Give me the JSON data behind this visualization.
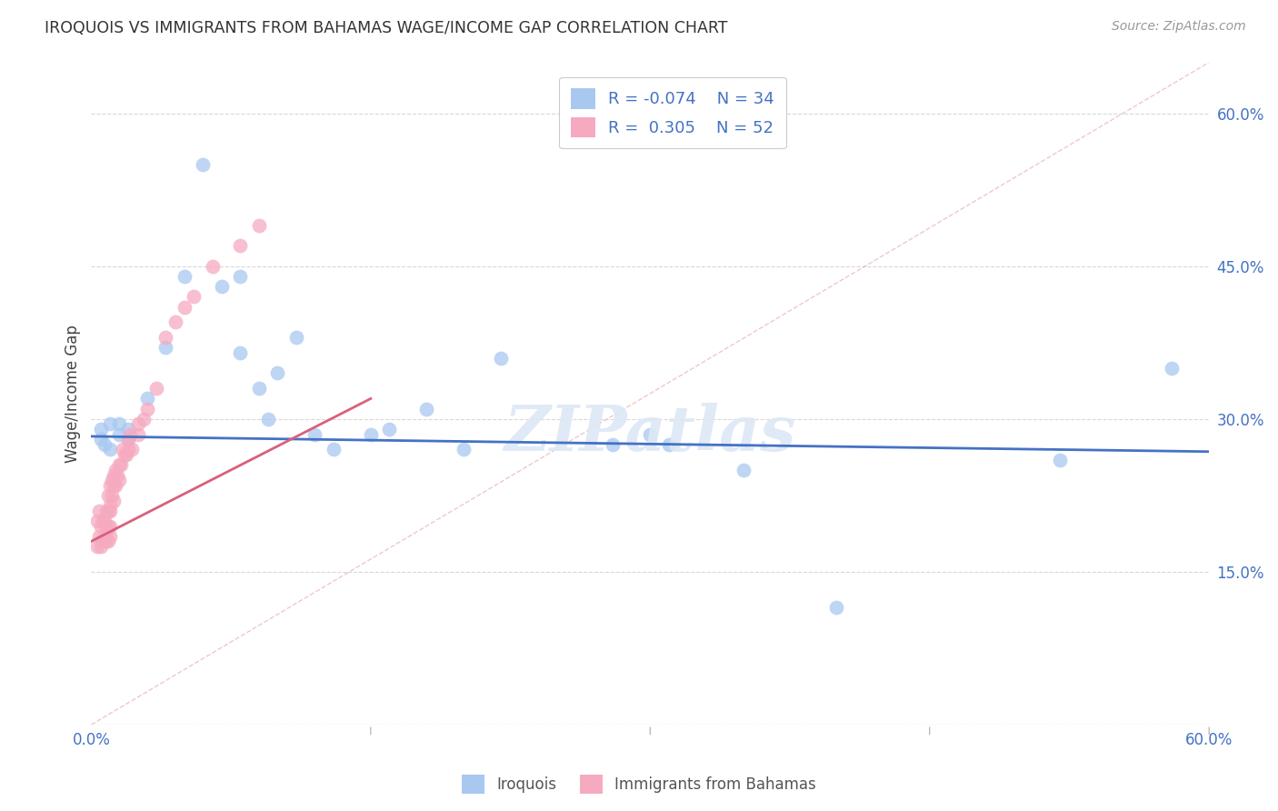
{
  "title": "IROQUOIS VS IMMIGRANTS FROM BAHAMAS WAGE/INCOME GAP CORRELATION CHART",
  "source": "Source: ZipAtlas.com",
  "ylabel": "Wage/Income Gap",
  "legend_label1": "Iroquois",
  "legend_label2": "Immigrants from Bahamas",
  "R1": -0.074,
  "N1": 34,
  "R2": 0.305,
  "N2": 52,
  "xlim": [
    0.0,
    0.6
  ],
  "ylim": [
    0.0,
    0.65
  ],
  "yticks": [
    0.0,
    0.15,
    0.3,
    0.45,
    0.6
  ],
  "ytick_labels": [
    "",
    "15.0%",
    "30.0%",
    "45.0%",
    "60.0%"
  ],
  "color_blue": "#a8c8f0",
  "color_pink": "#f5aac0",
  "line_blue": "#4472c4",
  "line_pink": "#d9607a",
  "iroquois_x": [
    0.005,
    0.005,
    0.007,
    0.01,
    0.01,
    0.015,
    0.015,
    0.02,
    0.02,
    0.03,
    0.04,
    0.05,
    0.06,
    0.07,
    0.08,
    0.08,
    0.09,
    0.095,
    0.1,
    0.11,
    0.12,
    0.13,
    0.15,
    0.16,
    0.18,
    0.2,
    0.22,
    0.28,
    0.3,
    0.31,
    0.35,
    0.4,
    0.52,
    0.58
  ],
  "iroquois_y": [
    0.29,
    0.28,
    0.275,
    0.295,
    0.27,
    0.295,
    0.285,
    0.28,
    0.29,
    0.32,
    0.37,
    0.44,
    0.55,
    0.43,
    0.44,
    0.365,
    0.33,
    0.3,
    0.345,
    0.38,
    0.285,
    0.27,
    0.285,
    0.29,
    0.31,
    0.27,
    0.36,
    0.275,
    0.285,
    0.275,
    0.25,
    0.115,
    0.26,
    0.35
  ],
  "bahamas_x": [
    0.003,
    0.003,
    0.004,
    0.004,
    0.005,
    0.005,
    0.006,
    0.006,
    0.007,
    0.007,
    0.008,
    0.008,
    0.008,
    0.009,
    0.009,
    0.009,
    0.009,
    0.01,
    0.01,
    0.01,
    0.01,
    0.01,
    0.011,
    0.011,
    0.012,
    0.012,
    0.012,
    0.013,
    0.013,
    0.014,
    0.015,
    0.015,
    0.016,
    0.017,
    0.018,
    0.019,
    0.02,
    0.02,
    0.021,
    0.022,
    0.025,
    0.025,
    0.028,
    0.03,
    0.035,
    0.04,
    0.045,
    0.05,
    0.055,
    0.065,
    0.08,
    0.09
  ],
  "bahamas_y": [
    0.2,
    0.175,
    0.21,
    0.185,
    0.195,
    0.175,
    0.2,
    0.18,
    0.2,
    0.185,
    0.21,
    0.19,
    0.18,
    0.225,
    0.21,
    0.195,
    0.18,
    0.235,
    0.215,
    0.21,
    0.195,
    0.185,
    0.24,
    0.225,
    0.245,
    0.235,
    0.22,
    0.25,
    0.235,
    0.245,
    0.255,
    0.24,
    0.255,
    0.27,
    0.265,
    0.265,
    0.28,
    0.27,
    0.285,
    0.27,
    0.295,
    0.285,
    0.3,
    0.31,
    0.33,
    0.38,
    0.395,
    0.41,
    0.42,
    0.45,
    0.47,
    0.49
  ],
  "blue_line_x": [
    0.0,
    0.6
  ],
  "blue_line_y": [
    0.283,
    0.268
  ],
  "pink_line_x": [
    0.0,
    0.15
  ],
  "pink_line_y": [
    0.18,
    0.32
  ],
  "dash_line_x": [
    0.0,
    0.6
  ],
  "dash_line_y": [
    0.0,
    0.65
  ]
}
